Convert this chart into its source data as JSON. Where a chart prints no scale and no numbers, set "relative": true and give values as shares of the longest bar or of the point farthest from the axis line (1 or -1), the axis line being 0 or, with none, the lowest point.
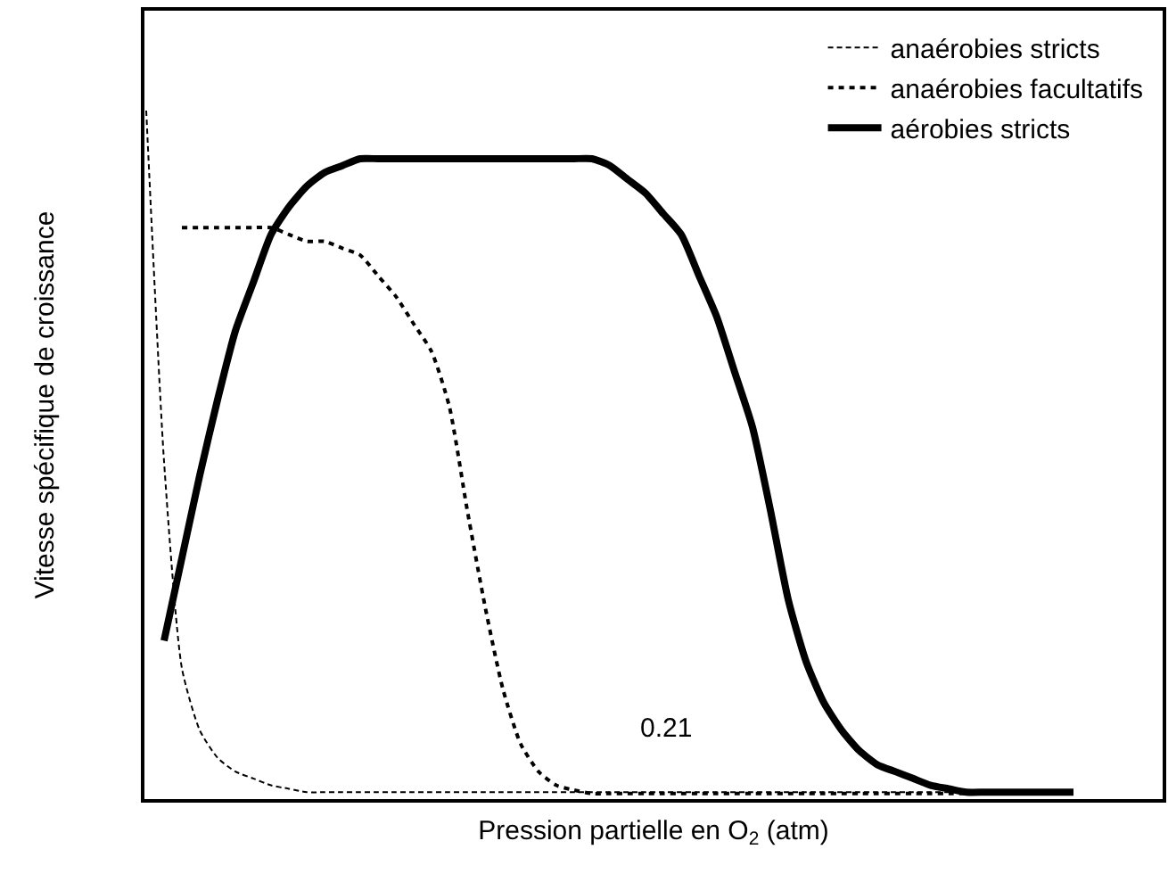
{
  "chart_data": {
    "type": "line",
    "relative": true,
    "xlabel": "Pression partielle en O$_{2}$ (atm)",
    "ylabel": "Vitesse spécifique de croissance",
    "annotations": [
      "0.21"
    ],
    "legend": "top right",
    "marker": "none",
    "categories": [
      null,
      null,
      null,
      null,
      null,
      null,
      null,
      null,
      null,
      null,
      null,
      null,
      null,
      null,
      null,
      null,
      null,
      null,
      null,
      null,
      null,
      null,
      null,
      null,
      null,
      null,
      null,
      null,
      null,
      null,
      null,
      null,
      null,
      null,
      null,
      null,
      null,
      null,
      null,
      null,
      null,
      null,
      null,
      null,
      null,
      null,
      null,
      null,
      null,
      null,
      null,
      null,
      null
    ],
    "series": [
      {
        "name": "anaérobies stricts",
        "color": "#000000",
        "line_style": "dashed",
        "values": [
          1.0,
          0.49,
          0.19,
          0.1,
          0.06,
          0.04,
          0.03,
          0.02,
          0.015,
          0.01,
          0.01,
          0.01,
          0.01,
          0.01,
          0.01,
          0.01,
          0.01,
          0.01,
          0.01,
          0.01,
          0.01,
          0.01,
          0.01,
          0.01,
          0.01,
          0.01,
          0.01,
          0.01,
          0.01,
          0.01,
          0.01,
          0.01,
          0.01,
          0.01,
          0.01,
          0.01,
          0.01,
          0.01,
          0.01,
          0.01,
          0.01,
          0.01,
          0.01,
          0.01,
          0.01,
          0.01,
          0.01,
          0.01,
          0.01,
          0.01,
          0.01,
          0.01,
          0.01
        ]
      },
      {
        "name": "anaérobies facultatifs",
        "color": "#000000",
        "line_style": "dotted",
        "values": [
          null,
          null,
          0.83,
          0.83,
          0.83,
          0.83,
          0.83,
          0.83,
          0.82,
          0.81,
          0.81,
          0.8,
          0.79,
          0.76,
          0.73,
          0.69,
          0.65,
          0.57,
          0.42,
          0.28,
          0.16,
          0.08,
          0.04,
          0.02,
          0.013,
          0.008,
          0.008,
          0.008,
          0.008,
          0.008,
          0.008,
          0.008,
          0.008,
          0.008,
          0.008,
          0.008,
          0.008,
          0.008,
          0.008,
          0.008,
          0.008,
          0.008,
          0.008,
          0.008,
          0.008,
          0.008,
          0.008,
          null,
          null,
          null,
          null,
          null,
          null
        ]
      },
      {
        "name": "aérobies stricts",
        "color": "#000000",
        "line_style": "solid",
        "values": [
          null,
          0.23,
          0.35,
          0.47,
          0.58,
          0.68,
          0.75,
          0.82,
          0.86,
          0.89,
          0.91,
          0.92,
          0.93,
          0.93,
          0.93,
          0.93,
          0.93,
          0.93,
          0.93,
          0.93,
          0.93,
          0.93,
          0.93,
          0.93,
          0.93,
          0.93,
          0.92,
          0.9,
          0.88,
          0.85,
          0.82,
          0.76,
          0.7,
          0.62,
          0.54,
          0.42,
          0.29,
          0.2,
          0.14,
          0.1,
          0.07,
          0.05,
          0.04,
          0.03,
          0.02,
          0.015,
          0.01,
          0.01,
          0.01,
          0.01,
          0.01,
          0.01,
          0.01
        ]
      }
    ]
  }
}
